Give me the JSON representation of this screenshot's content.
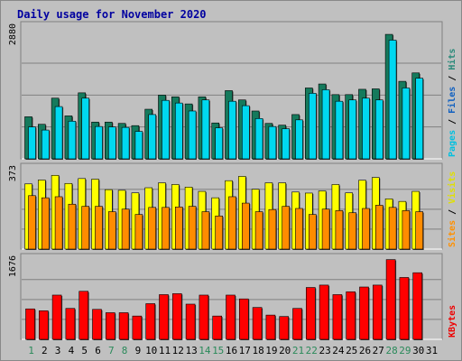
{
  "chart_data": {
    "type": "bar",
    "title": "Daily usage for November 2020",
    "days": [
      "1",
      "2",
      "3",
      "4",
      "5",
      "6",
      "7",
      "8",
      "9",
      "10",
      "11",
      "12",
      "13",
      "14",
      "15",
      "16",
      "17",
      "18",
      "19",
      "20",
      "21",
      "22",
      "23",
      "24",
      "25",
      "26",
      "27",
      "28",
      "29",
      "30",
      "31"
    ],
    "weekend_days": [
      "1",
      "7",
      "8",
      "14",
      "15",
      "21",
      "22",
      "28",
      "29"
    ],
    "panels": [
      {
        "id": "top",
        "max_label": "2880",
        "ymax": 2880,
        "right_label": [
          {
            "text": "Pages",
            "color": "#00c0e0"
          },
          {
            "text": " / ",
            "color": "#000000"
          },
          {
            "text": "Files",
            "color": "#1060c0"
          },
          {
            "text": " / ",
            "color": "#000000"
          },
          {
            "text": "Hits",
            "color": "#2a8a7a"
          }
        ],
        "series": [
          {
            "name": "Hits",
            "color": "#157a5c",
            "values": [
              950,
              780,
              1370,
              970,
              1490,
              830,
              830,
              800,
              750,
              1120,
              1440,
              1400,
              1240,
              1400,
              810,
              1540,
              1330,
              1080,
              800,
              760,
              1000,
              1600,
              1690,
              1450,
              1450,
              1570,
              1580,
              2810,
              1750,
              1940,
              0
            ]
          },
          {
            "name": "Files",
            "color": "#00d8f0",
            "values": [
              720,
              650,
              1180,
              850,
              1370,
              730,
              720,
              710,
              620,
              1000,
              1320,
              1260,
              1080,
              1330,
              700,
              1300,
              1200,
              910,
              730,
              680,
              880,
              1480,
              1560,
              1300,
              1330,
              1370,
              1330,
              2680,
              1600,
              1820,
              0
            ]
          }
        ]
      },
      {
        "id": "mid",
        "max_label": "373",
        "ymax": 373,
        "right_label": [
          {
            "text": "Sites",
            "color": "#ff9000"
          },
          {
            "text": " / ",
            "color": "#000000"
          },
          {
            "text": "Visits",
            "color": "#e0e000"
          }
        ],
        "series": [
          {
            "name": "Visits",
            "color": "#ffff00",
            "values": [
              305,
              323,
              345,
              307,
              330,
              327,
              278,
              275,
              263,
              287,
              310,
              302,
              290,
              270,
              240,
              320,
              340,
              280,
              310,
              310,
              267,
              262,
              272,
              302,
              263,
              322,
              335,
              235,
              223,
              270,
              0
            ]
          },
          {
            "name": "Sites",
            "color": "#ff8c00",
            "values": [
              250,
              240,
              245,
              210,
              200,
              200,
              175,
              187,
              162,
              195,
              195,
              197,
              200,
              175,
              155,
              245,
              215,
              175,
              185,
              200,
              190,
              162,
              187,
              180,
              170,
              190,
              205,
              195,
              180,
              175,
              0
            ]
          }
        ]
      },
      {
        "id": "bottom",
        "max_label": "1676",
        "ymax": 1676,
        "right_label": [
          {
            "text": "KBytes",
            "color": "#ee0000"
          }
        ],
        "series": [
          {
            "name": "KBytes",
            "color": "#ff0000",
            "values": [
              640,
              600,
              930,
              650,
              1010,
              630,
              560,
              560,
              490,
              750,
              940,
              960,
              740,
              930,
              490,
              930,
              850,
              670,
              510,
              480,
              650,
              1090,
              1140,
              940,
              1000,
              1100,
              1140,
              1676,
              1300,
              1400,
              0
            ]
          }
        ]
      }
    ]
  }
}
